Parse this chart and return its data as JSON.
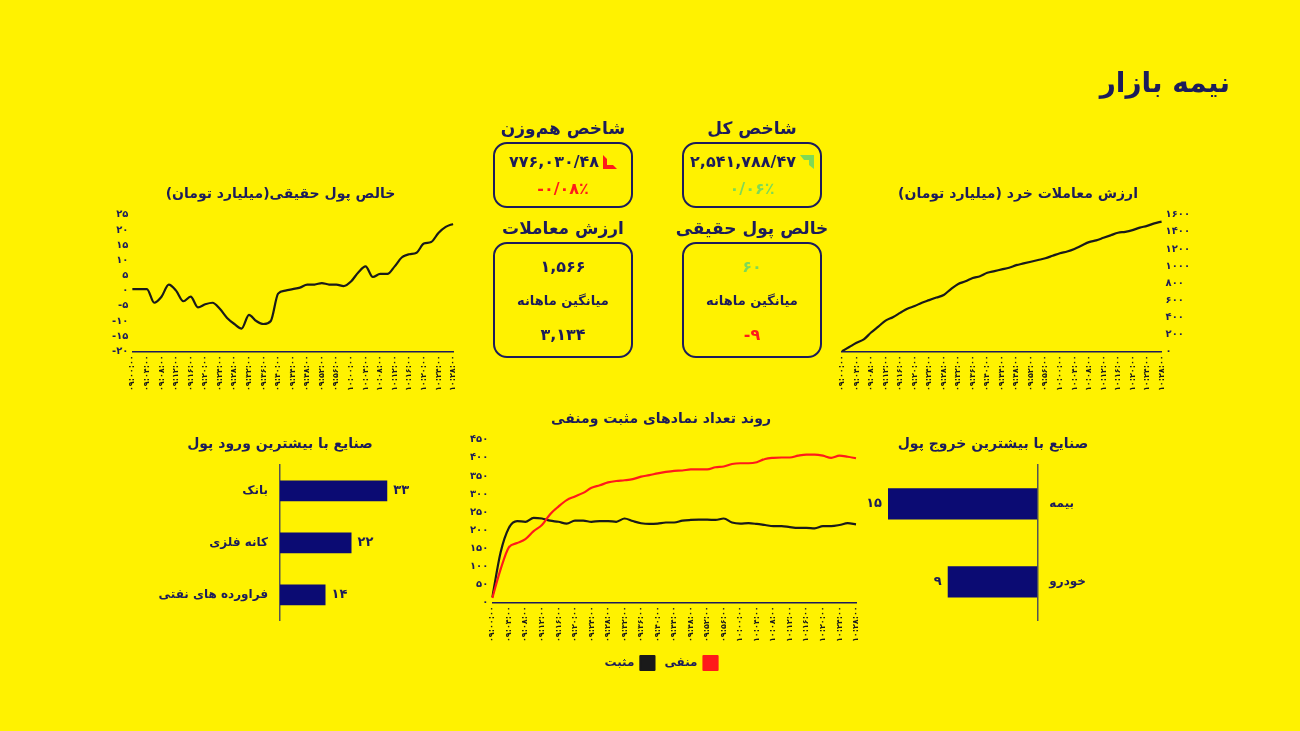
{
  "chart_data": [
    {
      "type": "other",
      "title": "نیمه بازار"
    },
    {
      "type": "other",
      "title": "شاخص هم‌وزن",
      "annotations": [
        "۷۷۶,۰۳۰/۴۸",
        "-۰/۰۸٪"
      ],
      "colors": [
        "#1c1c5a",
        "#ff1a1a"
      ]
    },
    {
      "type": "other",
      "title": "شاخص کل",
      "annotations": [
        "۲,۵۴۱,۷۸۸/۴۷",
        "۰/۰۶٪"
      ],
      "colors": [
        "#1c1c5a",
        "#7ed957"
      ]
    },
    {
      "type": "other",
      "title": "ارزش معاملات",
      "annotations": [
        "۱,۵۶۶",
        "میانگین ماهانه",
        "۳,۱۳۴"
      ],
      "colors": [
        "#1c1c5a",
        "#1c1c5a",
        "#1c1c5a"
      ]
    },
    {
      "type": "other",
      "title": "خالص پول حقیقی",
      "annotations": [
        "۶۰",
        "میانگین ماهانه",
        "-۹"
      ],
      "colors": [
        "#7ed957",
        "#1c1c5a",
        "#ff1a1a"
      ]
    },
    {
      "type": "line",
      "title": "خالص پول حقیقی(میلیارد تومان)",
      "color": "#1a1a1a",
      "categories": [
        "۰۹:۰۰:۰۰",
        null,
        "۰۹:۰۴:۰۰",
        null,
        "۰۹:۰۸:۰۰",
        null,
        "۰۹:۱۲:۰۰",
        null,
        "۰۹:۱۶:۰۰",
        null,
        "۰۹:۲۰:۰۰",
        null,
        "۰۹:۲۴:۰۰",
        null,
        "۰۹:۲۸:۰۰",
        null,
        "۰۹:۳۲:۰۰",
        null,
        "۰۹:۳۶:۰۰",
        null,
        "۰۹:۴۰:۰۰",
        null,
        "۰۹:۴۴:۰۰",
        null,
        "۰۹:۴۸:۰۰",
        null,
        "۰۹:۵۲:۰۰",
        null,
        "۰۹:۵۶:۰۰",
        null,
        "۱۰:۰۰:۰۰",
        null,
        "۱۰:۰۴:۰۰",
        null,
        "۱۰:۰۸:۰۰",
        null,
        "۱۰:۱۲:۰۰",
        null,
        "۱۰:۱۶:۰۰",
        null,
        "۱۰:۲۰:۰۰",
        null,
        "۱۰:۲۴:۰۰",
        null,
        "۱۰:۲۸:۰۰"
      ],
      "values": [
        0.5,
        0.5,
        0.5,
        -4,
        -2,
        2,
        0,
        -3.5,
        -2,
        -5.5,
        -4.5,
        -4,
        -6,
        -9,
        -11,
        -12.5,
        -8,
        -10,
        -11,
        -10,
        -1,
        0,
        0.5,
        1,
        2,
        2,
        2.5,
        2,
        2,
        1.5,
        3,
        6,
        8,
        4.5,
        5.5,
        5.5,
        8,
        11,
        12,
        12.5,
        15.5,
        16,
        19,
        21,
        22
      ],
      "ylim": [
        -20,
        25
      ],
      "yticks": [
        {
          "value": -20,
          "label": "-۲۰"
        },
        {
          "value": -15,
          "label": "-۱۵"
        },
        {
          "value": -10,
          "label": "-۱۰"
        },
        {
          "value": -5,
          "label": "-۵"
        },
        {
          "value": 0,
          "label": "۰"
        },
        {
          "value": 5,
          "label": "۵"
        },
        {
          "value": 10,
          "label": "۱۰"
        },
        {
          "value": 15,
          "label": "۱۵"
        },
        {
          "value": 20,
          "label": "۲۰"
        },
        {
          "value": 25,
          "label": "۲۵"
        }
      ],
      "grid": false,
      "legend": false
    },
    {
      "type": "line",
      "title": "ارزش معاملات خرد (میلیارد تومان)",
      "categories": [
        "۰۹:۰۰:۰۰",
        null,
        "۰۹:۰۴:۰۰",
        null,
        "۰۹:۰۸:۰۰",
        null,
        "۰۹:۱۲:۰۰",
        null,
        "۰۹:۱۶:۰۰",
        null,
        "۰۹:۲۰:۰۰",
        null,
        "۰۹:۲۴:۰۰",
        null,
        "۰۹:۲۸:۰۰",
        null,
        "۰۹:۳۲:۰۰",
        null,
        "۰۹:۳۶:۰۰",
        null,
        "۰۹:۴۰:۰۰",
        null,
        "۰۹:۴۴:۰۰",
        null,
        "۰۹:۴۸:۰۰",
        null,
        "۰۹:۵۲:۰۰",
        null,
        "۰۹:۵۶:۰۰",
        null,
        "۱۰:۰۰:۰۰",
        null,
        "۱۰:۰۴:۰۰",
        null,
        "۱۰:۰۸:۰۰",
        null,
        "۱۰:۱۲:۰۰",
        null,
        "۱۰:۱۶:۰۰",
        null,
        "۱۰:۲۰:۰۰",
        null,
        "۱۰:۲۴:۰۰",
        null,
        "۱۰:۲۸:۰۰"
      ],
      "series": [
        {
          "color": "#1a1a1a",
          "axis": "y2",
          "values": [
            0,
            50,
            100,
            140,
            220,
            290,
            360,
            400,
            450,
            500,
            530,
            570,
            600,
            630,
            660,
            730,
            790,
            820,
            860,
            880,
            920,
            940,
            960,
            980,
            1010,
            1030,
            1050,
            1070,
            1090,
            1120,
            1150,
            1170,
            1200,
            1240,
            1280,
            1300,
            1330,
            1360,
            1390,
            1400,
            1420,
            1450,
            1470,
            1500,
            1520
          ]
        }
      ],
      "y2lim": [
        0,
        1600
      ],
      "y2ticks": [
        {
          "value": 0,
          "label": "۰"
        },
        {
          "value": 200,
          "label": "۲۰۰"
        },
        {
          "value": 400,
          "label": "۴۰۰"
        },
        {
          "value": 600,
          "label": "۶۰۰"
        },
        {
          "value": 800,
          "label": "۸۰۰"
        },
        {
          "value": 1000,
          "label": "۱۰۰۰"
        },
        {
          "value": 1200,
          "label": "۱۲۰۰"
        },
        {
          "value": 1400,
          "label": "۱۴۰۰"
        },
        {
          "value": 1600,
          "label": "۱۶۰۰"
        }
      ],
      "grid": false,
      "legend": false
    },
    {
      "type": "bar",
      "orientation": "horizontal",
      "title": "صنایع با بیشترین ورود پول",
      "categories": [
        "بانک",
        "کانه فلزی",
        "فراورده های نفتی"
      ],
      "values": [
        33,
        22,
        14
      ],
      "value_labels": [
        "۳۳",
        "۲۲",
        "۱۴"
      ],
      "color": "#0b0b73",
      "tick_labels": "y",
      "grid": false,
      "legend": false
    },
    {
      "type": "line",
      "title": "روند تعداد نمادهای مثبت ومنفی",
      "categories": [
        "۰۹:۰۰:۰۰",
        null,
        "۰۹:۰۴:۰۰",
        null,
        "۰۹:۰۸:۰۰",
        null,
        "۰۹:۱۲:۰۰",
        null,
        "۰۹:۱۶:۰۰",
        null,
        "۰۹:۲۰:۰۰",
        null,
        "۰۹:۲۴:۰۰",
        null,
        "۰۹:۲۸:۰۰",
        null,
        "۰۹:۳۲:۰۰",
        null,
        "۰۹:۳۶:۰۰",
        null,
        "۰۹:۴۰:۰۰",
        null,
        "۰۹:۴۴:۰۰",
        null,
        "۰۹:۴۸:۰۰",
        null,
        "۰۹:۵۲:۰۰",
        null,
        "۰۹:۵۶:۰۰",
        null,
        "۱۰:۰۰:۰۰",
        null,
        "۱۰:۰۴:۰۰",
        null,
        "۱۰:۰۸:۰۰",
        null,
        "۱۰:۱۲:۰۰",
        null,
        "۱۰:۱۶:۰۰",
        null,
        "۱۰:۲۰:۰۰",
        null,
        "۱۰:۲۴:۰۰",
        null,
        "۱۰:۲۸:۰۰"
      ],
      "series": [
        {
          "name": "منفی",
          "color": "#ff1a1a",
          "values": [
            12,
            91,
            152,
            164,
            175,
            197,
            214,
            244,
            265,
            283,
            293,
            303,
            317,
            324,
            332,
            336,
            338,
            341,
            348,
            352,
            357,
            361,
            364,
            365,
            368,
            368,
            368,
            374,
            376,
            383,
            385,
            385,
            388,
            397,
            400,
            401,
            401,
            406,
            409,
            409,
            406,
            400,
            406,
            403,
            399
          ]
        },
        {
          "name": "مثبت",
          "color": "#1a1a1a",
          "values": [
            14,
            138,
            206,
            225,
            223,
            234,
            232,
            226,
            223,
            218,
            226,
            226,
            223,
            225,
            225,
            223,
            232,
            225,
            219,
            217,
            218,
            221,
            221,
            226,
            228,
            229,
            229,
            228,
            232,
            221,
            218,
            219,
            217,
            214,
            211,
            211,
            208,
            206,
            206,
            205,
            211,
            211,
            214,
            219,
            216
          ]
        }
      ],
      "ylim": [
        0,
        450
      ],
      "yticks": [
        {
          "value": 0,
          "label": "۰"
        },
        {
          "value": 50,
          "label": "۵۰"
        },
        {
          "value": 100,
          "label": "۱۰۰"
        },
        {
          "value": 150,
          "label": "۱۵۰"
        },
        {
          "value": 200,
          "label": "۲۰۰"
        },
        {
          "value": 250,
          "label": "۲۵۰"
        },
        {
          "value": 300,
          "label": "۳۰۰"
        },
        {
          "value": 350,
          "label": "۳۵۰"
        },
        {
          "value": 400,
          "label": "۴۰۰"
        },
        {
          "value": 450,
          "label": "۴۵۰"
        }
      ],
      "grid": false,
      "legend": "bottom"
    },
    {
      "type": "bar",
      "orientation": "horizontal",
      "title": "صنایع با بیشترین خروج پول",
      "categories": [
        "بیمه",
        "خودرو"
      ],
      "values": [
        15,
        9
      ],
      "value_labels": [
        "۱۵",
        "۹"
      ],
      "color": "#0b0b73",
      "tick_labels": "y",
      "grid": false,
      "legend": false
    }
  ]
}
